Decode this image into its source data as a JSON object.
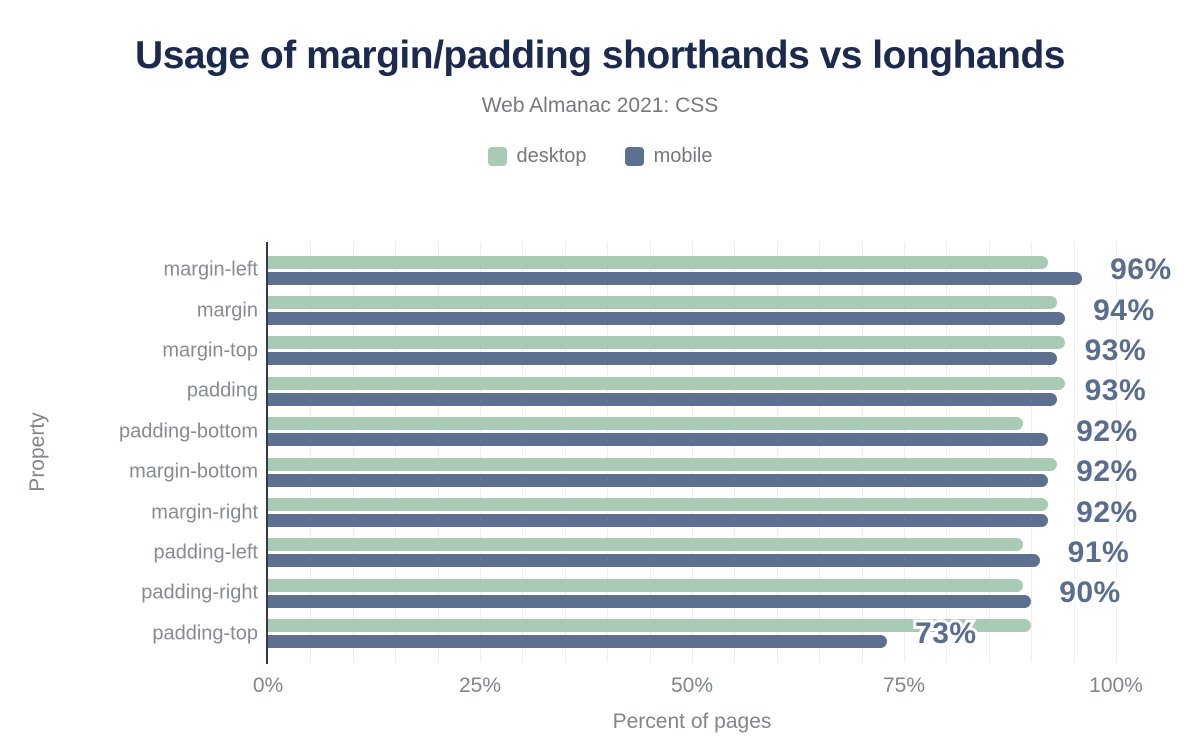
{
  "header": {
    "title": "Usage of margin/padding shorthands vs longhands",
    "subtitle": "Web Almanac 2021: CSS"
  },
  "colors": {
    "title": "#1b2a4d",
    "desktop": "#a9cab5",
    "mobile": "#5d7090",
    "value_label": "#5a6d90",
    "axis_line": "#2e3a52",
    "gridline": "#ededed",
    "axis_text": "#80858e"
  },
  "chart_data": {
    "type": "bar",
    "orientation": "horizontal",
    "title": "Usage of margin/padding shorthands vs longhands",
    "subtitle": "Web Almanac 2021: CSS",
    "categories": [
      "margin-left",
      "margin",
      "margin-top",
      "padding",
      "padding-bottom",
      "margin-bottom",
      "margin-right",
      "padding-left",
      "padding-right",
      "padding-top"
    ],
    "series": [
      {
        "name": "desktop",
        "color": "#a9cab5",
        "values": [
          92,
          93,
          94,
          94,
          89,
          93,
          92,
          89,
          89,
          90
        ]
      },
      {
        "name": "mobile",
        "color": "#5d7090",
        "values": [
          96,
          94,
          93,
          93,
          92,
          92,
          92,
          91,
          90,
          73
        ]
      }
    ],
    "value_labels": [
      "96%",
      "94%",
      "93%",
      "93%",
      "92%",
      "92%",
      "92%",
      "91%",
      "90%",
      "73%"
    ],
    "value_labels_series": "mobile",
    "xlabel": "Percent of pages",
    "ylabel": "Property",
    "x_ticks": [
      "0%",
      "25%",
      "50%",
      "75%",
      "100%"
    ],
    "x_tick_values": [
      0,
      25,
      50,
      75,
      100
    ],
    "xlim": [
      0,
      100
    ],
    "grid": "vertical, every 5%",
    "legend_position": "top"
  }
}
